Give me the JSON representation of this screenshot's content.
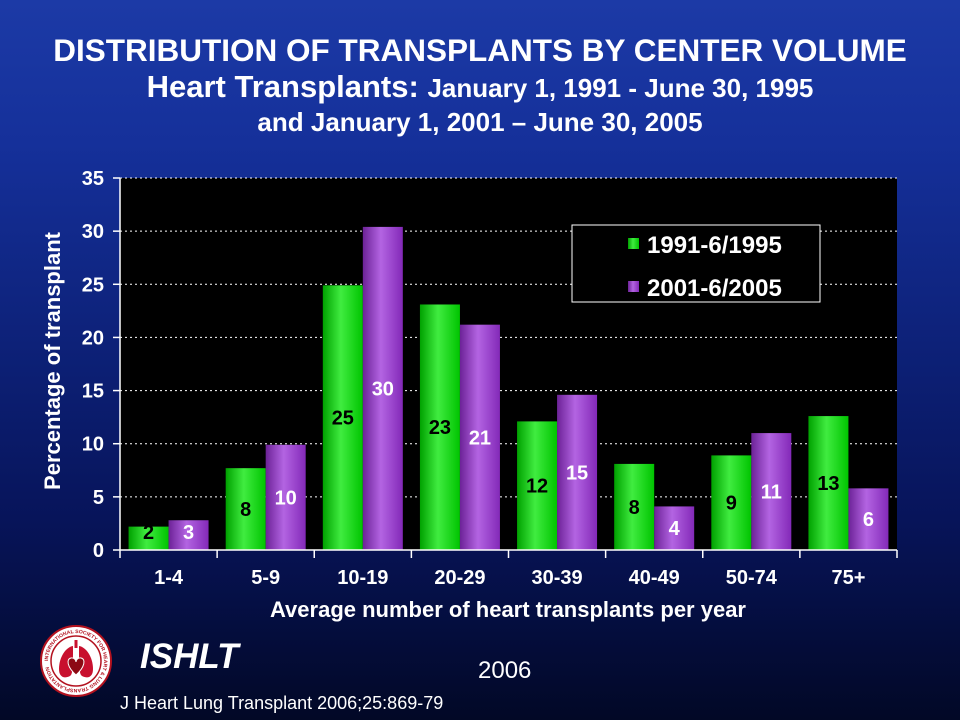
{
  "chart_data": {
    "type": "bar",
    "title": "DISTRIBUTION OF TRANSPLANTS BY CENTER VOLUME",
    "subtitle_lead": "Heart Transplants:",
    "subtitle": "January 1, 1991 - June 30, 1995",
    "subtitle_line2": "and January 1, 2001 – June 30, 2005",
    "xlabel": "Average number of heart transplants per year",
    "ylabel": "Percentage of transplant",
    "categories": [
      "1-4",
      "5-9",
      "10-19",
      "20-29",
      "30-39",
      "40-49",
      "50-74",
      "75+"
    ],
    "series": [
      {
        "name": "1991-6/1995",
        "color": "#00e600",
        "label_color": "#000000",
        "values": [
          2.2,
          7.7,
          24.9,
          23.1,
          12.1,
          8.1,
          8.9,
          12.6
        ],
        "labels": [
          "2",
          "8",
          "25",
          "23",
          "12",
          "8",
          "9",
          "13"
        ]
      },
      {
        "name": "2001-6/2005",
        "color": "#9a30d8",
        "label_color": "#ffffff",
        "values": [
          2.8,
          9.9,
          30.4,
          21.2,
          14.6,
          4.1,
          11.0,
          5.8
        ],
        "labels": [
          "3",
          "10",
          "30",
          "21",
          "15",
          "4",
          "11",
          "6"
        ]
      }
    ],
    "ylim": [
      0,
      35
    ],
    "yticks": [
      0,
      5,
      10,
      15,
      20,
      25,
      30,
      35
    ],
    "grid": true,
    "legend": "upper-right",
    "plot_background": "#000000"
  },
  "footer": {
    "society": "ISHLT",
    "year": "2006",
    "citation": "J Heart Lung Transplant 2006;25:869-79",
    "logo_text": "INTERNATIONAL SOCIETY FOR HEART & LUNG TRANSPLANTATION"
  }
}
